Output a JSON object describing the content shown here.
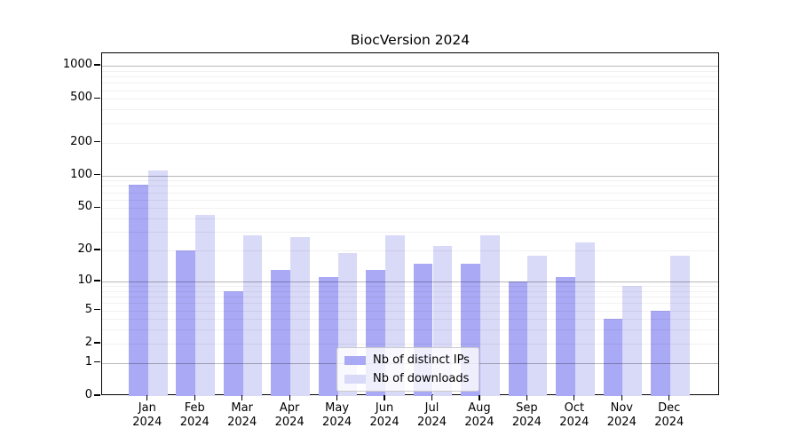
{
  "chart_data": {
    "type": "bar",
    "title": "BiocVersion 2024",
    "xlabel": "",
    "ylabel": "",
    "yscale": "log1p",
    "ylim": [
      0,
      1300
    ],
    "yticks": [
      0,
      1,
      2,
      5,
      10,
      20,
      50,
      100,
      200,
      500,
      1000
    ],
    "major_gridlines": [
      1,
      10,
      100,
      1000
    ],
    "grid": "both",
    "legend_position": "lower center",
    "categories": [
      "Jan",
      "Feb",
      "Mar",
      "Apr",
      "May",
      "Jun",
      "Jul",
      "Aug",
      "Sep",
      "Oct",
      "Nov",
      "Dec"
    ],
    "year_label": "2024",
    "series": [
      {
        "name": "Nb of distinct IPs",
        "color": "#a9a9f5",
        "values": [
          82,
          20,
          8,
          13,
          11,
          13,
          15,
          15,
          10,
          11,
          4,
          5
        ]
      },
      {
        "name": "Nb of downloads",
        "color": "#d9d9f8",
        "values": [
          112,
          43,
          28,
          27,
          19,
          28,
          22,
          28,
          18,
          24,
          9,
          18
        ]
      }
    ]
  }
}
